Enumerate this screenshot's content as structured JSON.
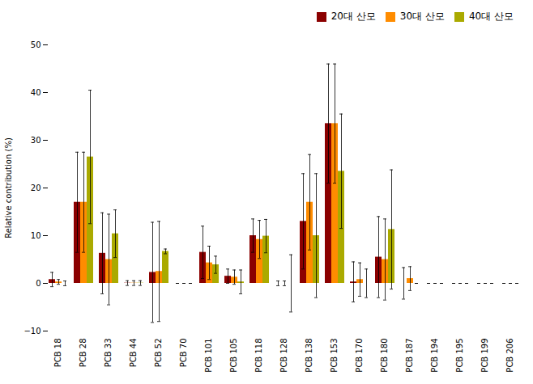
{
  "chart_data": {
    "type": "bar",
    "categories": [
      "PCB 18",
      "PCB 28",
      "PCB 33",
      "PCB 44",
      "PCB 52",
      "PCB 70",
      "PCB 101",
      "PCB 105",
      "PCB 118",
      "PCB 128",
      "PCB 138",
      "PCB 153",
      "PCB 170",
      "PCB 180",
      "PCB 187",
      "PCB 194",
      "PCB 195",
      "PCB 199",
      "PCB 206"
    ],
    "series": [
      {
        "name": "20대 산모",
        "color": "#8B0000",
        "values": [
          0.8,
          17.0,
          6.3,
          0.05,
          2.3,
          0.0,
          6.5,
          1.5,
          10.0,
          0.0,
          13.0,
          33.5,
          0.3,
          5.5,
          0.0,
          0.0,
          0.0,
          0.0,
          0.0
        ],
        "errors": [
          1.5,
          10.5,
          8.5,
          0.5,
          10.5,
          0.0,
          5.5,
          1.5,
          3.5,
          0.5,
          10.0,
          12.5,
          4.2,
          8.5,
          3.3,
          0.0,
          0.0,
          0.0,
          0.0
        ]
      },
      {
        "name": "30대 산모",
        "color": "#FF8C00",
        "values": [
          0.3,
          17.0,
          5.0,
          0.05,
          2.5,
          0.0,
          4.3,
          1.3,
          9.2,
          0.0,
          17.0,
          33.5,
          0.8,
          5.0,
          1.0,
          0.0,
          0.0,
          0.0,
          0.0
        ],
        "errors": [
          0.5,
          10.5,
          9.5,
          0.5,
          10.5,
          0.0,
          3.5,
          1.5,
          4.0,
          0.5,
          10.0,
          12.5,
          3.5,
          8.5,
          2.5,
          0.0,
          0.0,
          0.0,
          0.0
        ]
      },
      {
        "name": "40대 산모",
        "color": "#AAAA00",
        "values": [
          0.0,
          26.5,
          10.4,
          0.05,
          6.7,
          0.0,
          3.9,
          0.3,
          9.9,
          0.0,
          10.0,
          23.5,
          0.0,
          11.3,
          0.0,
          0.0,
          0.0,
          0.0,
          0.0
        ],
        "errors": [
          0.5,
          14.0,
          5.0,
          0.5,
          0.5,
          0.0,
          1.8,
          2.5,
          3.5,
          6.0,
          13.0,
          12.0,
          3.0,
          12.5,
          0.0,
          0.0,
          0.0,
          0.0,
          0.0
        ]
      }
    ],
    "ylabel": "Relative contribution (%)",
    "ylim": [
      -10,
      50
    ],
    "yticks": [
      -10,
      0,
      10,
      20,
      30,
      40,
      50
    ],
    "grid": false,
    "legend": "upper right"
  }
}
